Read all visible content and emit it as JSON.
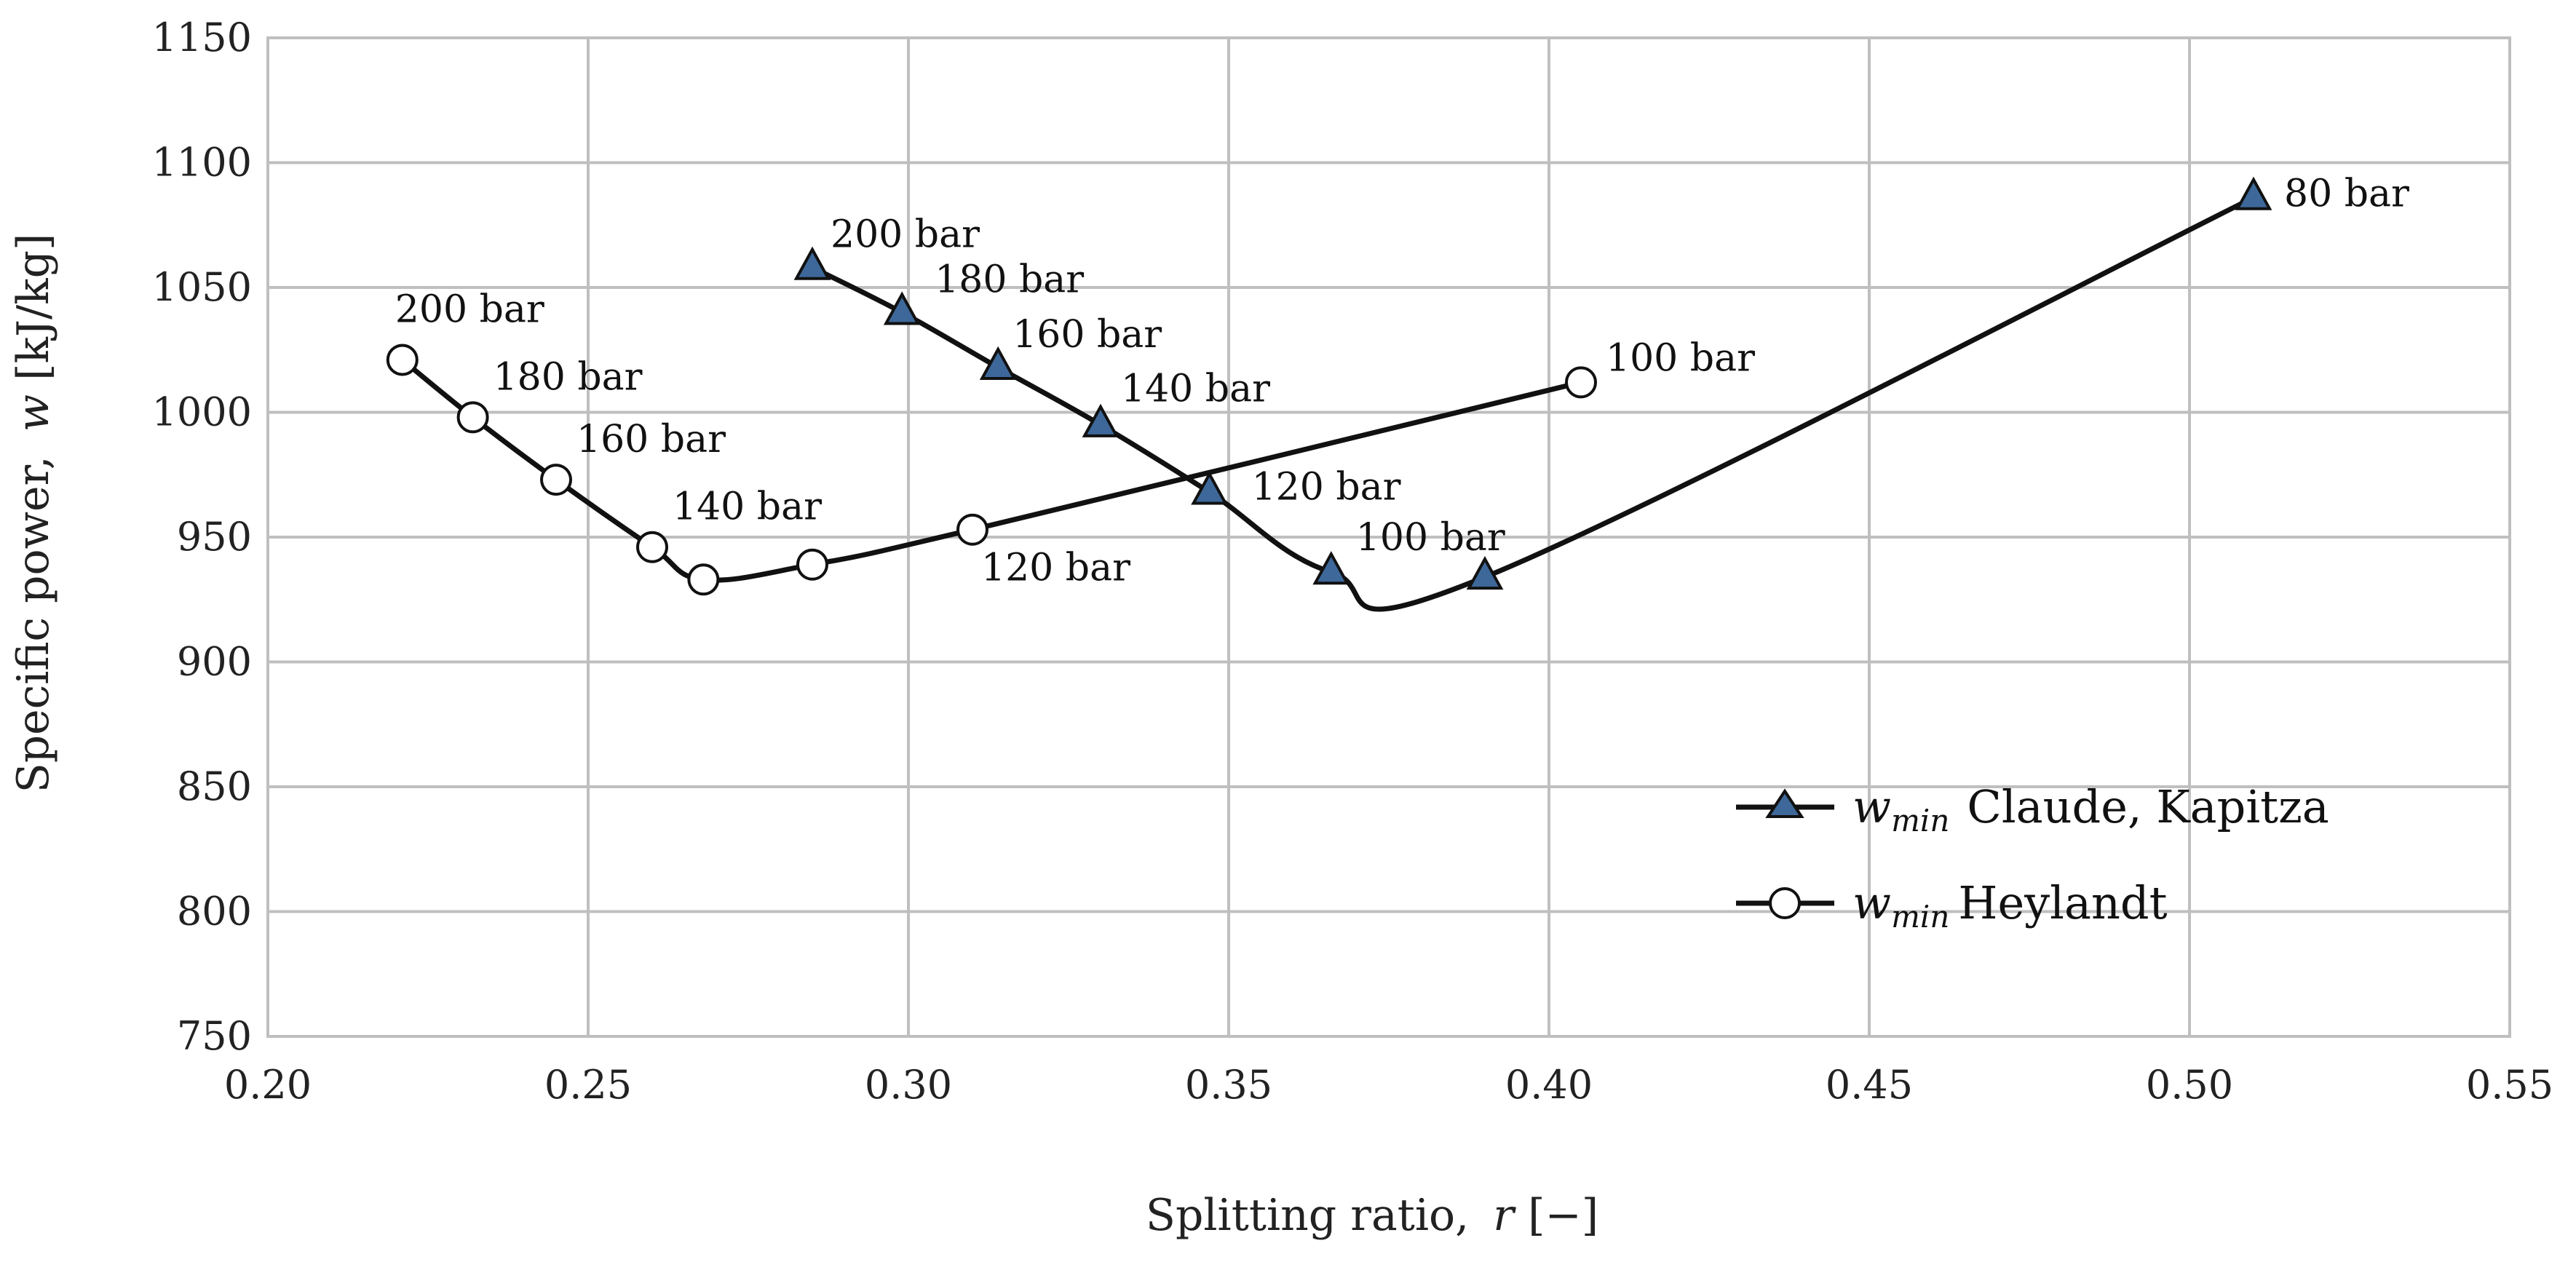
{
  "chart_data": {
    "type": "line",
    "xlabel_main": "Splitting ratio,",
    "xlabel_var": "r",
    "xlabel_unit": "[−]",
    "ylabel_main": "Specific power,",
    "ylabel_var": "w",
    "ylabel_unit": "[kJ/kg]",
    "xlim": [
      0.2,
      0.55
    ],
    "ylim": [
      750,
      1150
    ],
    "xticks": [
      "0.20",
      "0.25",
      "0.30",
      "0.35",
      "0.40",
      "0.45",
      "0.50",
      "0.55"
    ],
    "yticks": [
      "750",
      "800",
      "850",
      "900",
      "950",
      "1000",
      "1050",
      "1100",
      "1150"
    ],
    "grid": true,
    "legend_position": "bottom-right",
    "colors": {
      "triangle_fill": "#3d6899",
      "line": "#111111",
      "grid": "#bfbfbf"
    },
    "series": [
      {
        "name": "Claude, Kapitza",
        "legend_var": "w",
        "legend_sub": "min",
        "marker": "triangle",
        "points": [
          {
            "x": 0.285,
            "y": 1058,
            "label": "200 bar"
          },
          {
            "x": 0.299,
            "y": 1040,
            "label": "180 bar"
          },
          {
            "x": 0.314,
            "y": 1018,
            "label": "160 bar"
          },
          {
            "x": 0.33,
            "y": 995,
            "label": "140 bar"
          },
          {
            "x": 0.347,
            "y": 968,
            "label": "120 bar"
          },
          {
            "x": 0.366,
            "y": 936,
            "label": "100 bar"
          },
          {
            "x": 0.39,
            "y": 934,
            "label": ""
          },
          {
            "x": 0.51,
            "y": 1086,
            "label": "80 bar"
          }
        ]
      },
      {
        "name": "Heylandt",
        "legend_var": "w",
        "legend_sub": "min",
        "marker": "circle",
        "points": [
          {
            "x": 0.221,
            "y": 1021,
            "label": "200 bar"
          },
          {
            "x": 0.232,
            "y": 998,
            "label": "180 bar"
          },
          {
            "x": 0.245,
            "y": 973,
            "label": "160 bar"
          },
          {
            "x": 0.26,
            "y": 946,
            "label": "140 bar"
          },
          {
            "x": 0.268,
            "y": 933,
            "label": ""
          },
          {
            "x": 0.285,
            "y": 939,
            "label": ""
          },
          {
            "x": 0.31,
            "y": 953,
            "label": "120 bar"
          },
          {
            "x": 0.405,
            "y": 1012,
            "label": "100 bar"
          }
        ]
      }
    ]
  }
}
